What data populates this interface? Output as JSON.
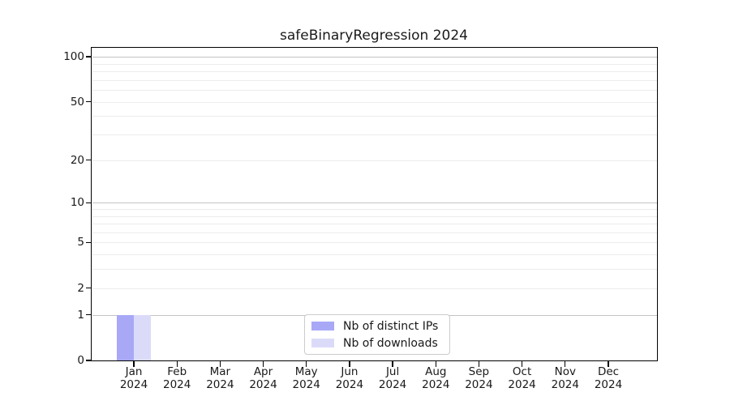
{
  "chart_data": {
    "type": "bar",
    "title": "safeBinaryRegression 2024",
    "x_months": [
      "Jan",
      "Feb",
      "Mar",
      "Apr",
      "May",
      "Jun",
      "Jul",
      "Aug",
      "Sep",
      "Oct",
      "Nov",
      "Dec"
    ],
    "x_year": "2024",
    "series": [
      {
        "name": "Nb of distinct IPs",
        "color": "#a8a8f7",
        "values": [
          1,
          0,
          0,
          0,
          0,
          0,
          0,
          0,
          0,
          0,
          0,
          0
        ]
      },
      {
        "name": "Nb of downloads",
        "color": "#dbdbf9",
        "values": [
          1,
          0,
          0,
          0,
          0,
          0,
          0,
          0,
          0,
          0,
          0,
          0
        ]
      }
    ],
    "yscale": "log1p",
    "ylim": [
      0,
      114
    ],
    "ytick_labels": [
      "100",
      "50",
      "20",
      "10",
      "5",
      "2",
      "1",
      "0"
    ],
    "ytick_values": [
      100,
      50,
      20,
      10,
      5,
      2,
      1,
      0
    ],
    "grid_major_values": [
      1,
      10,
      100
    ],
    "grid_minor_values": [
      2,
      3,
      4,
      5,
      6,
      7,
      8,
      9,
      20,
      30,
      40,
      50,
      60,
      70,
      80,
      90
    ],
    "legend_position": "lower center",
    "colors": {
      "grid_major": "#c3c3c3",
      "grid_minor": "#ececec",
      "spine": "#000000",
      "text": "#191919"
    }
  }
}
